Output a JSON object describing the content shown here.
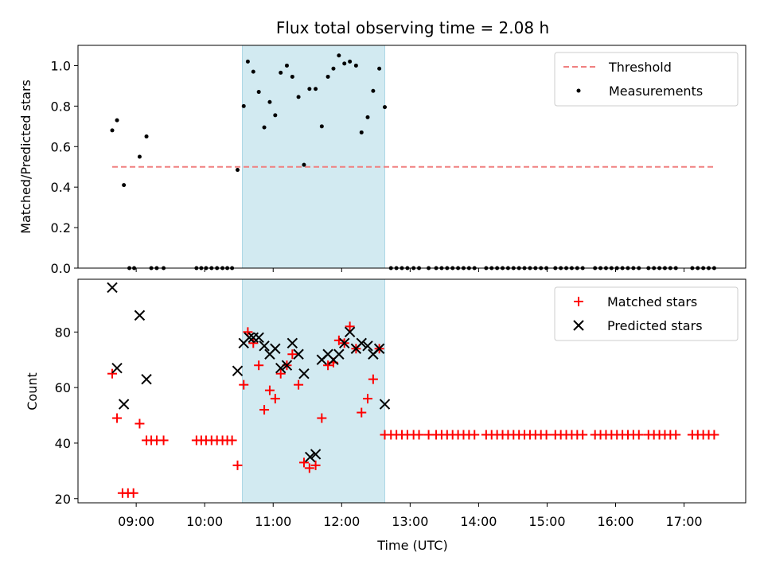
{
  "chart_data": {
    "title": "Flux total observing time = 2.08 h",
    "xlabel": "Time (UTC)",
    "x_axis_type": "time-of-day (hours UTC)",
    "xlim": [
      8.15,
      17.9
    ],
    "xticks": [
      9,
      10,
      11,
      12,
      13,
      14,
      15,
      16,
      17
    ],
    "xtick_labels": [
      "09:00",
      "10:00",
      "11:00",
      "12:00",
      "13:00",
      "14:00",
      "15:00",
      "16:00",
      "17:00"
    ],
    "shaded_region": {
      "x_start": 10.55,
      "x_end": 12.63,
      "color": "#add8e6"
    },
    "panels": [
      {
        "type": "scatter",
        "ylabel": "Matched/Predicted stars",
        "ylim": [
          0,
          1.1
        ],
        "yticks": [
          0.0,
          0.2,
          0.4,
          0.6,
          0.8,
          1.0
        ],
        "ytick_labels": [
          "0.0",
          "0.2",
          "0.4",
          "0.6",
          "0.8",
          "1.0"
        ],
        "legend_position": "top-right",
        "threshold": {
          "name": "Threshold",
          "value": 0.5,
          "x_start": 8.65,
          "x_end": 17.45,
          "color": "#f08080",
          "style": "dashed"
        },
        "series": [
          {
            "name": "Measurements",
            "marker": "dot",
            "color": "#000000",
            "x": [
              8.65,
              8.72,
              8.82,
              8.9,
              8.97,
              9.05,
              9.15,
              9.22,
              9.3,
              9.4,
              9.88,
              9.95,
              10.02,
              10.1,
              10.18,
              10.26,
              10.33,
              10.4,
              10.48,
              10.57,
              10.63,
              10.71,
              10.79,
              10.87,
              10.95,
              11.03,
              11.11,
              11.2,
              11.28,
              11.37,
              11.45,
              11.53,
              11.62,
              11.71,
              11.8,
              11.88,
              11.96,
              12.04,
              12.12,
              12.21,
              12.29,
              12.38,
              12.46,
              12.55,
              12.63,
              12.72,
              12.8,
              12.88,
              12.96,
              13.05,
              13.13,
              13.27,
              13.38,
              13.46,
              13.54,
              13.62,
              13.7,
              13.78,
              13.86,
              13.94,
              14.11,
              14.19,
              14.27,
              14.35,
              14.43,
              14.51,
              14.59,
              14.67,
              14.75,
              14.83,
              14.91,
              14.99,
              15.12,
              15.2,
              15.28,
              15.36,
              15.44,
              15.52,
              15.7,
              15.78,
              15.86,
              15.94,
              16.02,
              16.1,
              16.18,
              16.26,
              16.34,
              16.48,
              16.56,
              16.64,
              16.72,
              16.8,
              16.88,
              17.12,
              17.2,
              17.28,
              17.36,
              17.44
            ],
            "y": [
              0.68,
              0.73,
              0.41,
              0.0,
              0.0,
              0.55,
              0.65,
              0.0,
              0.0,
              0.0,
              0.0,
              0.0,
              0.0,
              0.0,
              0.0,
              0.0,
              0.0,
              0.0,
              0.485,
              0.8,
              1.02,
              0.97,
              0.87,
              0.695,
              0.82,
              0.755,
              0.965,
              1.0,
              0.945,
              0.845,
              0.51,
              0.885,
              0.885,
              0.7,
              0.945,
              0.985,
              1.05,
              1.01,
              1.02,
              1.0,
              0.67,
              0.745,
              0.875,
              0.985,
              0.795,
              0.0,
              0.0,
              0.0,
              0.0,
              0.0,
              0.0,
              0.0,
              0.0,
              0.0,
              0.0,
              0.0,
              0.0,
              0.0,
              0.0,
              0.0,
              0.0,
              0.0,
              0.0,
              0.0,
              0.0,
              0.0,
              0.0,
              0.0,
              0.0,
              0.0,
              0.0,
              0.0,
              0.0,
              0.0,
              0.0,
              0.0,
              0.0,
              0.0,
              0.0,
              0.0,
              0.0,
              0.0,
              0.0,
              0.0,
              0.0,
              0.0,
              0.0,
              0.0,
              0.0,
              0.0,
              0.0,
              0.0,
              0.0,
              0.0,
              0.0,
              0.0,
              0.0,
              0.0
            ]
          }
        ]
      },
      {
        "type": "scatter",
        "ylabel": "Count",
        "ylim": [
          18.5,
          99
        ],
        "yticks": [
          20,
          40,
          60,
          80
        ],
        "ytick_labels": [
          "20",
          "40",
          "60",
          "80"
        ],
        "legend_position": "top-right",
        "series": [
          {
            "name": "Matched stars",
            "marker": "plus",
            "color": "#ff0000",
            "x": [
              8.65,
              8.72,
              8.8,
              8.88,
              8.96,
              9.05,
              9.15,
              9.22,
              9.3,
              9.4,
              9.88,
              9.95,
              10.02,
              10.1,
              10.18,
              10.26,
              10.33,
              10.4,
              10.48,
              10.57,
              10.63,
              10.71,
              10.79,
              10.87,
              10.95,
              11.03,
              11.11,
              11.2,
              11.28,
              11.37,
              11.45,
              11.53,
              11.62,
              11.71,
              11.8,
              11.88,
              11.96,
              12.04,
              12.12,
              12.21,
              12.29,
              12.38,
              12.46,
              12.55,
              12.63,
              12.72,
              12.8,
              12.88,
              12.96,
              13.05,
              13.13,
              13.27,
              13.38,
              13.46,
              13.54,
              13.62,
              13.7,
              13.78,
              13.86,
              13.94,
              14.11,
              14.19,
              14.27,
              14.35,
              14.43,
              14.51,
              14.59,
              14.67,
              14.75,
              14.83,
              14.91,
              14.99,
              15.12,
              15.2,
              15.28,
              15.36,
              15.44,
              15.52,
              15.7,
              15.78,
              15.86,
              15.94,
              16.02,
              16.1,
              16.18,
              16.26,
              16.34,
              16.48,
              16.56,
              16.64,
              16.72,
              16.8,
              16.88,
              17.12,
              17.2,
              17.28,
              17.36,
              17.44
            ],
            "y": [
              65,
              49,
              22,
              22,
              22,
              47,
              41,
              41,
              41,
              41,
              41,
              41,
              41,
              41,
              41,
              41,
              41,
              41,
              32,
              61,
              80,
              76,
              68,
              52,
              59,
              56,
              65,
              68,
              72,
              61,
              33,
              31,
              32,
              49,
              68,
              69,
              77,
              76,
              82,
              74,
              51,
              56,
              63,
              74,
              43,
              43,
              43,
              43,
              43,
              43,
              43,
              43,
              43,
              43,
              43,
              43,
              43,
              43,
              43,
              43,
              43,
              43,
              43,
              43,
              43,
              43,
              43,
              43,
              43,
              43,
              43,
              43,
              43,
              43,
              43,
              43,
              43,
              43,
              43,
              43,
              43,
              43,
              43,
              43,
              43,
              43,
              43,
              43,
              43,
              43,
              43,
              43,
              43,
              43,
              43,
              43,
              43,
              43
            ]
          },
          {
            "name": "Predicted stars",
            "marker": "x",
            "color": "#000000",
            "x": [
              8.65,
              8.72,
              8.82,
              9.05,
              9.15,
              10.48,
              10.57,
              10.65,
              10.71,
              10.79,
              10.87,
              10.95,
              11.03,
              11.11,
              11.2,
              11.28,
              11.37,
              11.45,
              11.54,
              11.62,
              11.71,
              11.8,
              11.88,
              11.96,
              12.04,
              12.12,
              12.21,
              12.29,
              12.38,
              12.46,
              12.55,
              12.63
            ],
            "y": [
              96,
              67,
              54,
              86,
              63,
              66,
              76,
              78,
              78,
              78,
              75,
              72,
              74,
              67,
              68,
              76,
              72,
              65,
              35,
              36,
              70,
              72,
              70,
              72,
              76,
              80,
              74,
              76,
              75,
              72,
              74,
              54
            ]
          }
        ]
      }
    ]
  }
}
